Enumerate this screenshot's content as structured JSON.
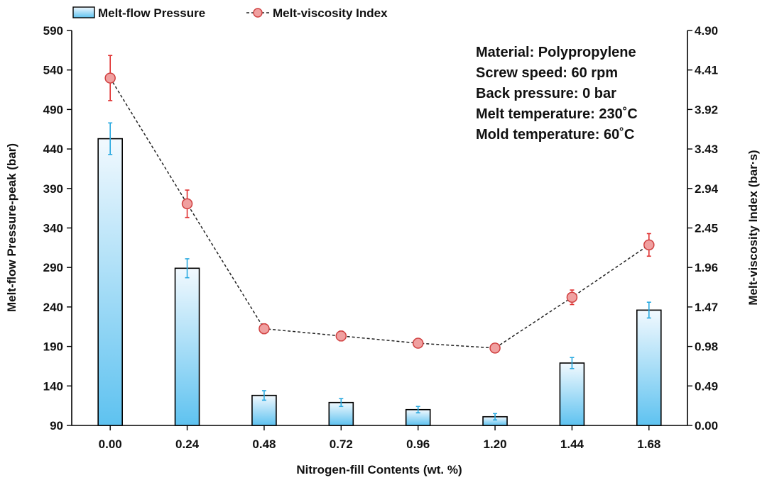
{
  "chart_data": {
    "type": "bar+line",
    "categories": [
      "0.00",
      "0.24",
      "0.48",
      "0.72",
      "0.96",
      "1.20",
      "1.44",
      "1.68"
    ],
    "xlabel": "Nitrogen-fill Contents (wt. %)",
    "ylabel_left": "Melt-flow Pressure-peak (bar)",
    "ylabel_right": "Melt-viscosity Index (bar·s)",
    "ylim_left": [
      90,
      590
    ],
    "yticks_left": [
      "90",
      "140",
      "190",
      "240",
      "290",
      "340",
      "390",
      "440",
      "490",
      "540",
      "590"
    ],
    "ylim_right": [
      0,
      4.9
    ],
    "yticks_right": [
      "0.00",
      "0.49",
      "0.98",
      "1.47",
      "1.96",
      "2.45",
      "2.94",
      "3.43",
      "3.92",
      "4.41",
      "4.90"
    ],
    "series": [
      {
        "name": "Melt-flow Pressure",
        "type": "bar",
        "axis": "left",
        "values": [
          453,
          289,
          128,
          119,
          110,
          101,
          169,
          236
        ],
        "errors": [
          20,
          12,
          6,
          5,
          4,
          4,
          7,
          10
        ]
      },
      {
        "name": "Melt-viscosity Index",
        "type": "line",
        "axis": "right",
        "values": [
          4.31,
          2.75,
          1.2,
          1.11,
          1.02,
          0.96,
          1.59,
          2.24
        ],
        "errors": [
          0.28,
          0.17,
          0.06,
          0.06,
          0.05,
          0.04,
          0.09,
          0.14
        ]
      }
    ],
    "legend": [
      "Melt-flow Pressure",
      "Melt-viscosity Index"
    ],
    "annotations": [
      "Material: Polypropylene",
      "Screw speed: 60 rpm",
      "Back pressure: 0 bar",
      "Melt temperature: 230˚C",
      "Mold temperature: 60˚C"
    ],
    "colors": {
      "bar_top": "#f2f9fe",
      "bar_bottom": "#5ec2f0",
      "bar_error": "#29a9e0",
      "line": "#222222",
      "marker_fill": "#f0a0a0",
      "marker_stroke": "#d04040",
      "line_error": "#e03030"
    }
  }
}
